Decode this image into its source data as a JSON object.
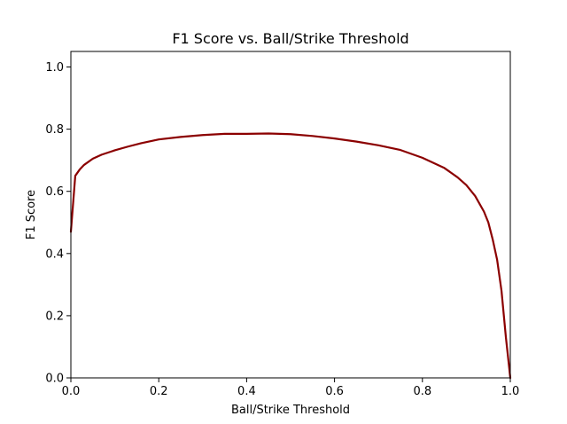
{
  "chart_data": {
    "type": "line",
    "title": "F1 Score vs. Ball/Strike Threshold",
    "xlabel": "Ball/Strike Threshold",
    "ylabel": "F1 Score",
    "xlim": [
      0,
      1
    ],
    "ylim": [
      0,
      1.05
    ],
    "grid": false,
    "xticks": [
      "0.0",
      "0.2",
      "0.4",
      "0.6",
      "0.8",
      "1.0"
    ],
    "yticks": [
      "0.0",
      "0.2",
      "0.4",
      "0.6",
      "0.8",
      "1.0"
    ],
    "series": [
      {
        "color": "#8b0000",
        "x": [
          0.0,
          0.01,
          0.02,
          0.03,
          0.05,
          0.07,
          0.1,
          0.13,
          0.16,
          0.2,
          0.25,
          0.3,
          0.35,
          0.4,
          0.45,
          0.5,
          0.55,
          0.6,
          0.65,
          0.7,
          0.75,
          0.8,
          0.85,
          0.88,
          0.9,
          0.92,
          0.94,
          0.95,
          0.96,
          0.97,
          0.98,
          0.99,
          1.0
        ],
        "y": [
          0.47,
          0.65,
          0.67,
          0.685,
          0.705,
          0.718,
          0.732,
          0.744,
          0.755,
          0.767,
          0.775,
          0.781,
          0.785,
          0.785,
          0.786,
          0.784,
          0.778,
          0.77,
          0.76,
          0.748,
          0.733,
          0.708,
          0.675,
          0.645,
          0.62,
          0.585,
          0.535,
          0.5,
          0.445,
          0.38,
          0.28,
          0.13,
          0.0
        ]
      }
    ]
  }
}
